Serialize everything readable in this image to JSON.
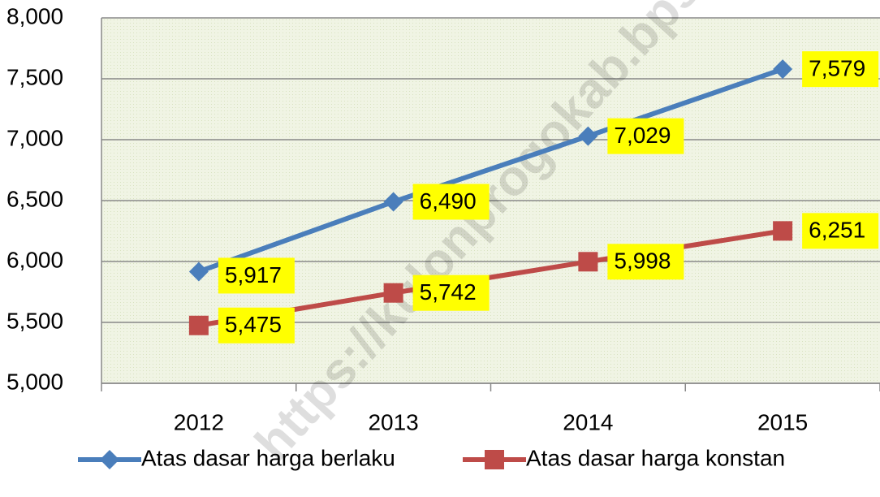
{
  "chart_data": {
    "type": "line",
    "categories": [
      "2012",
      "2013",
      "2014",
      "2015"
    ],
    "series": [
      {
        "name": "Atas dasar harga berlaku",
        "color": "#4a7ebb",
        "marker": "diamond",
        "values": [
          5917,
          6490,
          7029,
          7579
        ],
        "value_labels": [
          "5,917",
          "6,490",
          "7,029",
          "7,579"
        ]
      },
      {
        "name": "Atas dasar harga konstan",
        "color": "#be4b48",
        "marker": "square",
        "values": [
          5475,
          5742,
          5998,
          6251
        ],
        "value_labels": [
          "5,475",
          "5,742",
          "5,998",
          "6,251"
        ]
      }
    ],
    "ylim": [
      5000,
      8000
    ],
    "yticks": [
      {
        "value": 5000,
        "label": "5,000"
      },
      {
        "value": 5500,
        "label": "5,500"
      },
      {
        "value": 6000,
        "label": "6,000"
      },
      {
        "value": 6500,
        "label": "6,500"
      },
      {
        "value": 7000,
        "label": "7,000"
      },
      {
        "value": 7500,
        "label": "7,500"
      },
      {
        "value": 8000,
        "label": "8,000"
      }
    ],
    "grid": true,
    "legend": "bottom",
    "label_color": "#ffff00",
    "watermark": "https://kulonprogokab.bps.go.id"
  }
}
